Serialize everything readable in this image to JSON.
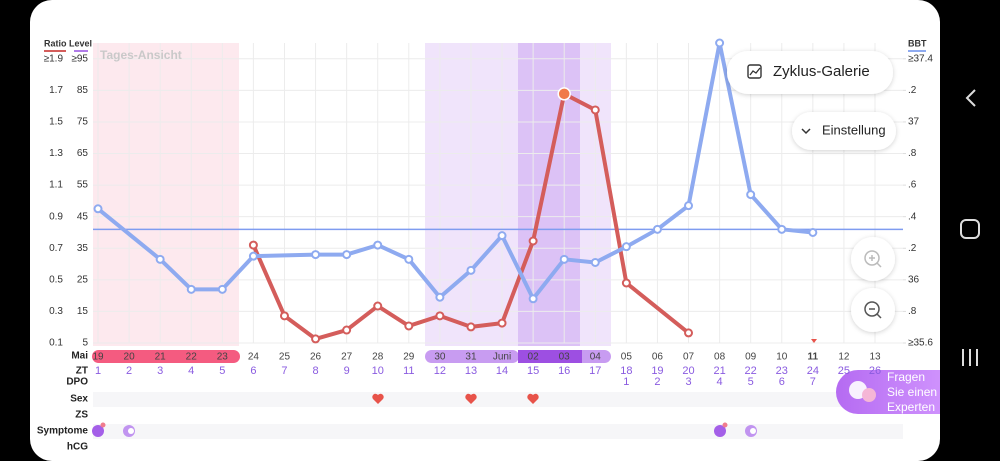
{
  "chart_data": {
    "type": "line",
    "view_label": "Tages-Ansicht",
    "left_axis_title": "Ratio Level",
    "right_axis_title": "BBT",
    "ratio_labels": [
      "≥1.9",
      "1.7",
      "1.5",
      "1.3",
      "1.1",
      "0.9",
      "0.7",
      "0.5",
      "0.3",
      "0.1"
    ],
    "ylim": [
      5,
      100
    ],
    "yticks": [
      {
        "value": 95,
        "label": "≥95"
      },
      85,
      75,
      65,
      55,
      45,
      35,
      25,
      15,
      5
    ],
    "y2lim": [
      35.6,
      37.5
    ],
    "y2ticks": [
      {
        "value": 37.4,
        "label": "≥37.4"
      },
      {
        "value": 37.2,
        "label": ".2"
      },
      37,
      {
        "value": 36.8,
        "label": ".8"
      },
      {
        "value": 36.6,
        "label": ".6"
      },
      {
        "value": 36.4,
        "label": ".4"
      },
      {
        "value": 36.2,
        "label": ".2"
      },
      36,
      {
        "value": 35.8,
        "label": ".8"
      },
      {
        "value": 35.6,
        "label": "≥35.6"
      }
    ],
    "grid": true,
    "row_labels": {
      "month": "Mai",
      "zt": "ZT",
      "dpo": "DPO",
      "sex": "Sex",
      "zs": "ZS",
      "symptoms": "Symptome",
      "hcg": "hCG"
    },
    "categories": [
      "19",
      "20",
      "21",
      "22",
      "23",
      "24",
      "25",
      "26",
      "27",
      "28",
      "29",
      "30",
      "31",
      "Juni",
      "02",
      "03",
      "04",
      "05",
      "06",
      "07",
      "08",
      "09",
      "10",
      "11",
      "12",
      "13"
    ],
    "zt": [
      1,
      2,
      3,
      4,
      5,
      6,
      7,
      8,
      9,
      10,
      11,
      12,
      13,
      14,
      15,
      16,
      17,
      18,
      19,
      20,
      21,
      22,
      23,
      24,
      25,
      26
    ],
    "dpo": [
      null,
      null,
      null,
      null,
      null,
      null,
      null,
      null,
      null,
      null,
      null,
      null,
      null,
      null,
      null,
      null,
      null,
      1,
      2,
      3,
      4,
      5,
      6,
      7,
      null,
      null
    ],
    "series": [
      {
        "color": "#d45d5b",
        "values": [
          null,
          null,
          null,
          null,
          null,
          36,
          13.6,
          6.3,
          9.1,
          16.7,
          10.4,
          13.6,
          10.1,
          11.3,
          37.3,
          83.9,
          78.8,
          24,
          null,
          8.2,
          null,
          null,
          null,
          null,
          null,
          null
        ]
      },
      {
        "color": "#8eaaf0",
        "axis": "y2",
        "values": [
          36.45,
          null,
          36.13,
          35.94,
          35.94,
          36.15,
          null,
          36.16,
          36.16,
          36.22,
          36.13,
          35.89,
          36.06,
          36.28,
          35.88,
          36.13,
          36.11,
          36.21,
          36.32,
          36.47,
          37.5,
          36.54,
          36.32,
          36.3,
          null,
          null
        ]
      }
    ],
    "coverline": {
      "value": 36.32,
      "axis": "y2",
      "color": "#7f9cf0"
    }
  },
  "buttons": {
    "gallery": "Zyklus-Galerie",
    "settings": "Einstellung",
    "expert": [
      "Fragen",
      "Sie einen",
      "Experten"
    ]
  }
}
